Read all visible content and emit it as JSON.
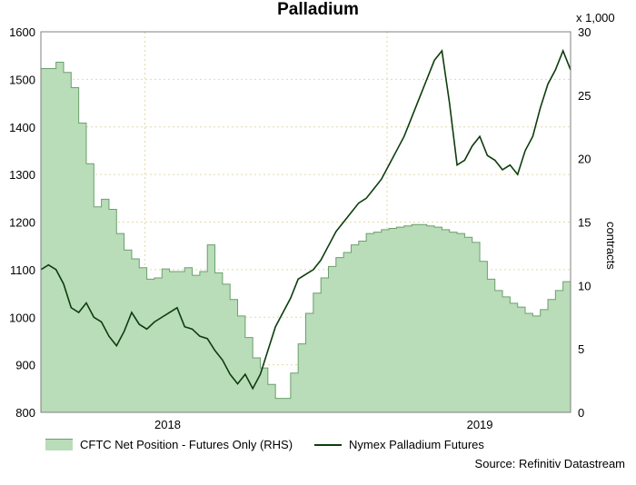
{
  "chart_data": {
    "type": "line",
    "title": "Palladium",
    "left_axis": {
      "range": [
        800,
        1600
      ],
      "ticks": [
        800,
        900,
        1000,
        1100,
        1200,
        1300,
        1400,
        1500,
        1600
      ]
    },
    "right_axis": {
      "range": [
        0,
        30
      ],
      "ticks": [
        0,
        5,
        10,
        15,
        20,
        25,
        30
      ],
      "unit": "x 1,000",
      "label": "contracts"
    },
    "x_ticks": [
      "2018",
      "2019"
    ],
    "grid": true,
    "legend_position": "bottom",
    "series": [
      {
        "name": "CFTC Net Position - Futures Only (RHS)",
        "style": "area",
        "axis": "right",
        "color": "#8cc08c",
        "x": [
          0,
          2,
          4,
          6,
          8,
          10,
          12,
          14,
          16,
          18,
          20,
          22,
          24,
          26,
          28,
          30,
          32,
          34,
          36,
          38,
          40,
          42,
          44,
          46,
          48,
          50,
          52,
          54,
          56,
          58,
          60,
          62,
          64,
          66,
          68,
          70,
          72,
          74,
          76,
          78,
          80,
          82,
          84,
          86,
          88,
          90,
          92,
          94,
          96,
          98,
          100,
          102,
          104,
          106,
          108,
          110,
          112,
          114,
          116,
          118,
          120,
          122,
          124,
          126,
          128,
          130,
          132,
          134,
          136,
          138,
          140
        ],
        "values": [
          27.1,
          27.1,
          27.6,
          26.8,
          25.6,
          22.8,
          19.6,
          16.2,
          16.8,
          16.0,
          14.1,
          12.8,
          12.1,
          11.4,
          10.5,
          10.6,
          11.3,
          11.1,
          11.1,
          11.4,
          10.8,
          11.1,
          13.2,
          11.0,
          10.1,
          8.9,
          7.6,
          5.9,
          4.3,
          3.5,
          2.2,
          1.1,
          1.1,
          3.1,
          5.4,
          7.8,
          9.4,
          10.6,
          11.5,
          12.2,
          12.6,
          13.2,
          13.5,
          14.1,
          14.2,
          14.4,
          14.5,
          14.6,
          14.7,
          14.8,
          14.8,
          14.7,
          14.6,
          14.4,
          14.2,
          14.1,
          13.8,
          13.4,
          11.9,
          10.5,
          9.6,
          9.1,
          8.6,
          8.3,
          7.8,
          7.6,
          8.1,
          8.9,
          9.6,
          10.3,
          11.3
        ],
        "x_end": 140
      },
      {
        "name": "Nymex Palladium Futures",
        "style": "line",
        "axis": "left",
        "color": "#0d3d0d",
        "x": [
          0,
          2,
          4,
          6,
          8,
          10,
          12,
          14,
          16,
          18,
          20,
          22,
          24,
          26,
          28,
          30,
          32,
          34,
          36,
          38,
          40,
          42,
          44,
          46,
          48,
          50,
          52,
          54,
          56,
          58,
          60,
          62,
          64,
          66,
          68,
          70,
          72,
          74,
          76,
          78,
          80,
          82,
          84,
          86,
          88,
          90,
          92,
          94,
          96,
          98,
          100,
          102,
          104,
          106,
          108,
          110,
          112,
          114,
          116,
          118,
          120,
          122,
          124,
          126,
          128,
          130,
          132,
          134,
          136,
          138,
          140
        ],
        "values": [
          1100,
          1110,
          1100,
          1070,
          1020,
          1010,
          1030,
          1000,
          990,
          960,
          940,
          970,
          1010,
          985,
          975,
          990,
          1000,
          1010,
          1020,
          980,
          975,
          960,
          955,
          930,
          910,
          880,
          860,
          880,
          850,
          880,
          930,
          980,
          1010,
          1040,
          1080,
          1090,
          1100,
          1120,
          1150,
          1180,
          1200,
          1220,
          1240,
          1250,
          1270,
          1290,
          1320,
          1350,
          1380,
          1420,
          1460,
          1500,
          1540,
          1560,
          1450,
          1320,
          1330,
          1360,
          1380,
          1340,
          1330,
          1310,
          1320,
          1300,
          1350,
          1380,
          1440,
          1490,
          1520,
          1560,
          1520
        ],
        "x_end": 140
      }
    ]
  },
  "legend": {
    "item1": "CFTC Net Position - Futures Only (RHS)",
    "item2": "Nymex Palladium Futures"
  },
  "source": "Source: Refinitiv Datastream",
  "unit_label": "x 1,000",
  "rhs_label": "contracts",
  "title": "Palladium"
}
